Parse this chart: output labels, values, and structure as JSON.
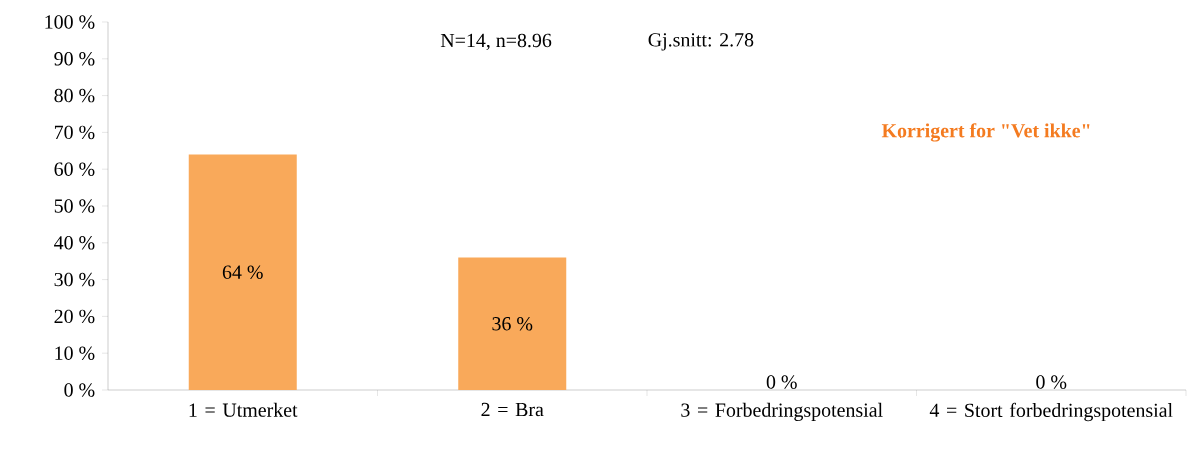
{
  "chart_data": {
    "type": "bar",
    "categories": [
      "1 = Utmerket",
      "2 = Bra",
      "3 = Forbedringspotensial",
      "4 = Stort forbedringspotensial"
    ],
    "values": [
      64,
      36,
      0,
      0
    ],
    "value_labels": [
      "64 %",
      "36 %",
      "0 %",
      "0 %"
    ],
    "color": "#f9a95a",
    "ylim": [
      0,
      100
    ],
    "yticks": [
      {
        "value": 0,
        "label": "0 %"
      },
      {
        "value": 10,
        "label": "10 %"
      },
      {
        "value": 20,
        "label": "20 %"
      },
      {
        "value": 30,
        "label": "30 %"
      },
      {
        "value": 40,
        "label": "40 %"
      },
      {
        "value": 50,
        "label": "50 %"
      },
      {
        "value": 60,
        "label": "60 %"
      },
      {
        "value": 70,
        "label": "70 %"
      },
      {
        "value": 80,
        "label": "80 %"
      },
      {
        "value": 90,
        "label": "90 %"
      },
      {
        "value": 100,
        "label": "100 %"
      }
    ],
    "annotations": [
      "N=14, n=8.96",
      "Gj.snitt: 2.78",
      "Korrigert for \"Vet ikke\""
    ]
  }
}
